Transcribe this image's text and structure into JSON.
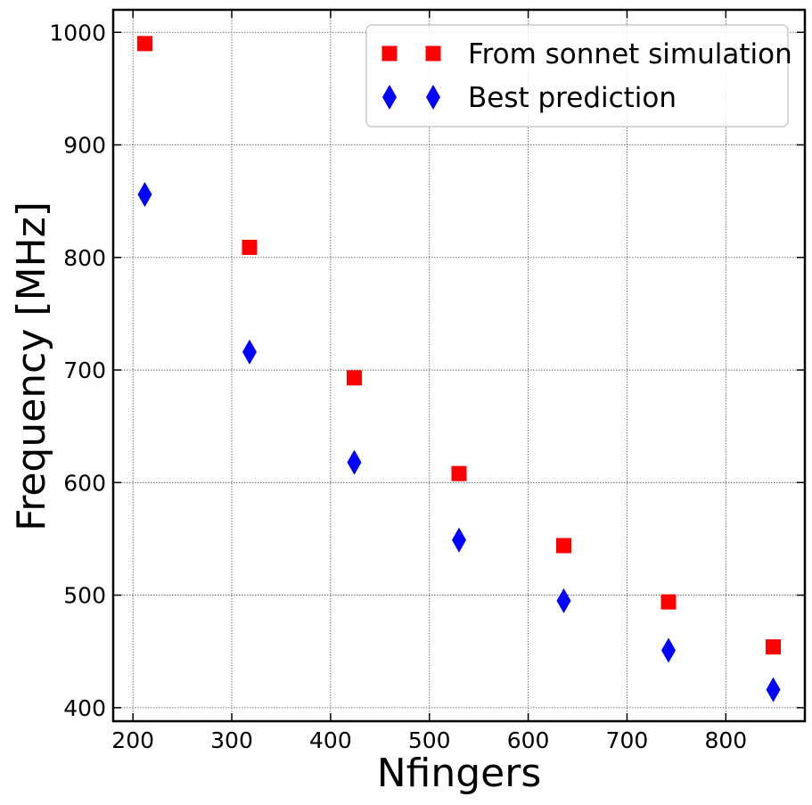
{
  "chart_data": {
    "type": "scatter",
    "xlabel": "Nfingers",
    "ylabel": "Frequency [MHz]",
    "xlim": [
      180,
      880
    ],
    "ylim": [
      388,
      1020
    ],
    "xticks": [
      200,
      300,
      400,
      500,
      600,
      700,
      800
    ],
    "yticks": [
      400,
      500,
      600,
      700,
      800,
      900,
      1000
    ],
    "grid": true,
    "legend_position": "top-right",
    "series": [
      {
        "name": "From sonnet simulation",
        "marker": "square",
        "color": "#ff0000",
        "points": [
          {
            "x": 212,
            "y": 990
          },
          {
            "x": 318,
            "y": 809
          },
          {
            "x": 424,
            "y": 693
          },
          {
            "x": 530,
            "y": 608
          },
          {
            "x": 636,
            "y": 544
          },
          {
            "x": 742,
            "y": 494
          },
          {
            "x": 848,
            "y": 454
          }
        ]
      },
      {
        "name": "Best prediction",
        "marker": "thin_diamond",
        "color": "#0000ff",
        "points": [
          {
            "x": 212,
            "y": 856
          },
          {
            "x": 318,
            "y": 716
          },
          {
            "x": 424,
            "y": 618
          },
          {
            "x": 530,
            "y": 549
          },
          {
            "x": 636,
            "y": 495
          },
          {
            "x": 742,
            "y": 451
          },
          {
            "x": 848,
            "y": 416
          }
        ]
      }
    ]
  }
}
